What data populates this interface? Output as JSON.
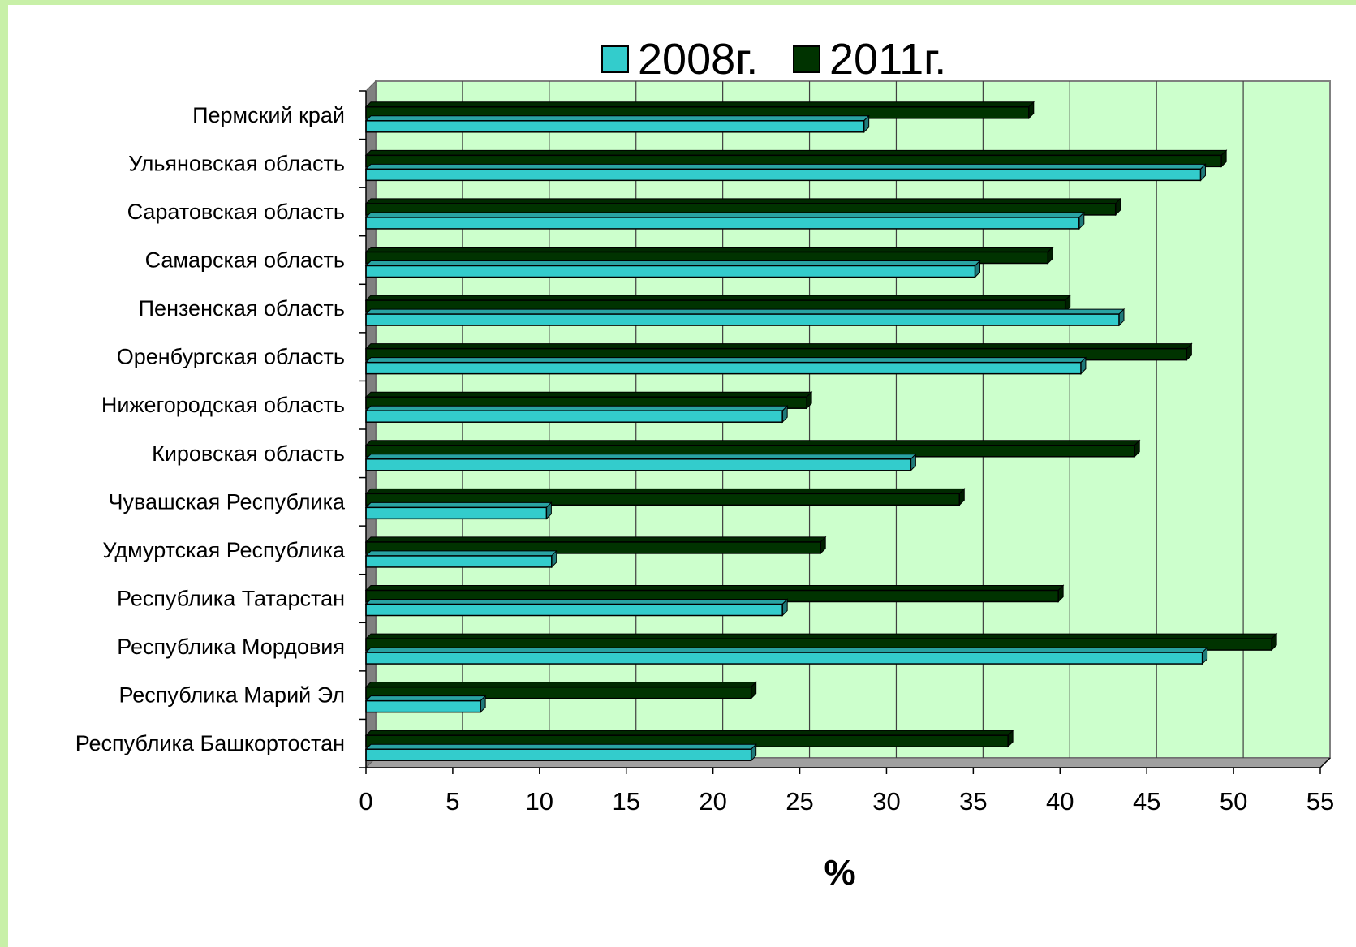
{
  "chart_data": {
    "type": "bar",
    "orientation": "horizontal",
    "categories": [
      "Пермский край",
      "Ульяновская область",
      "Саратовская область",
      "Самарская область",
      "Пензенская область",
      "Оренбургская область",
      "Нижегородская область",
      "Кировская область",
      "Чувашская Республика",
      "Удмуртская Республика",
      "Республика Татарстан",
      "Республика Мордовия",
      "Республика Марий Эл",
      "Республика Башкортостан"
    ],
    "series": [
      {
        "name": "2008г.",
        "color": "#33cccc",
        "values": [
          28.7,
          48.1,
          41.1,
          35.1,
          43.4,
          41.2,
          24.0,
          31.4,
          10.4,
          10.7,
          24.0,
          48.2,
          6.6,
          22.2
        ]
      },
      {
        "name": "2011г.",
        "color": "#003300",
        "values": [
          38.2,
          49.3,
          43.2,
          39.3,
          40.3,
          47.3,
          25.4,
          44.3,
          34.2,
          26.2,
          39.9,
          52.2,
          22.2,
          37.0
        ]
      }
    ],
    "xlabel": "%",
    "ylabel": "",
    "xlim": [
      0,
      55
    ],
    "ticks": [
      "0",
      "5",
      "10",
      "15",
      "20",
      "25",
      "30",
      "35",
      "40",
      "45",
      "50",
      "55"
    ],
    "grid": true,
    "legend_position": "top",
    "plot_background": "#ccffcc"
  }
}
